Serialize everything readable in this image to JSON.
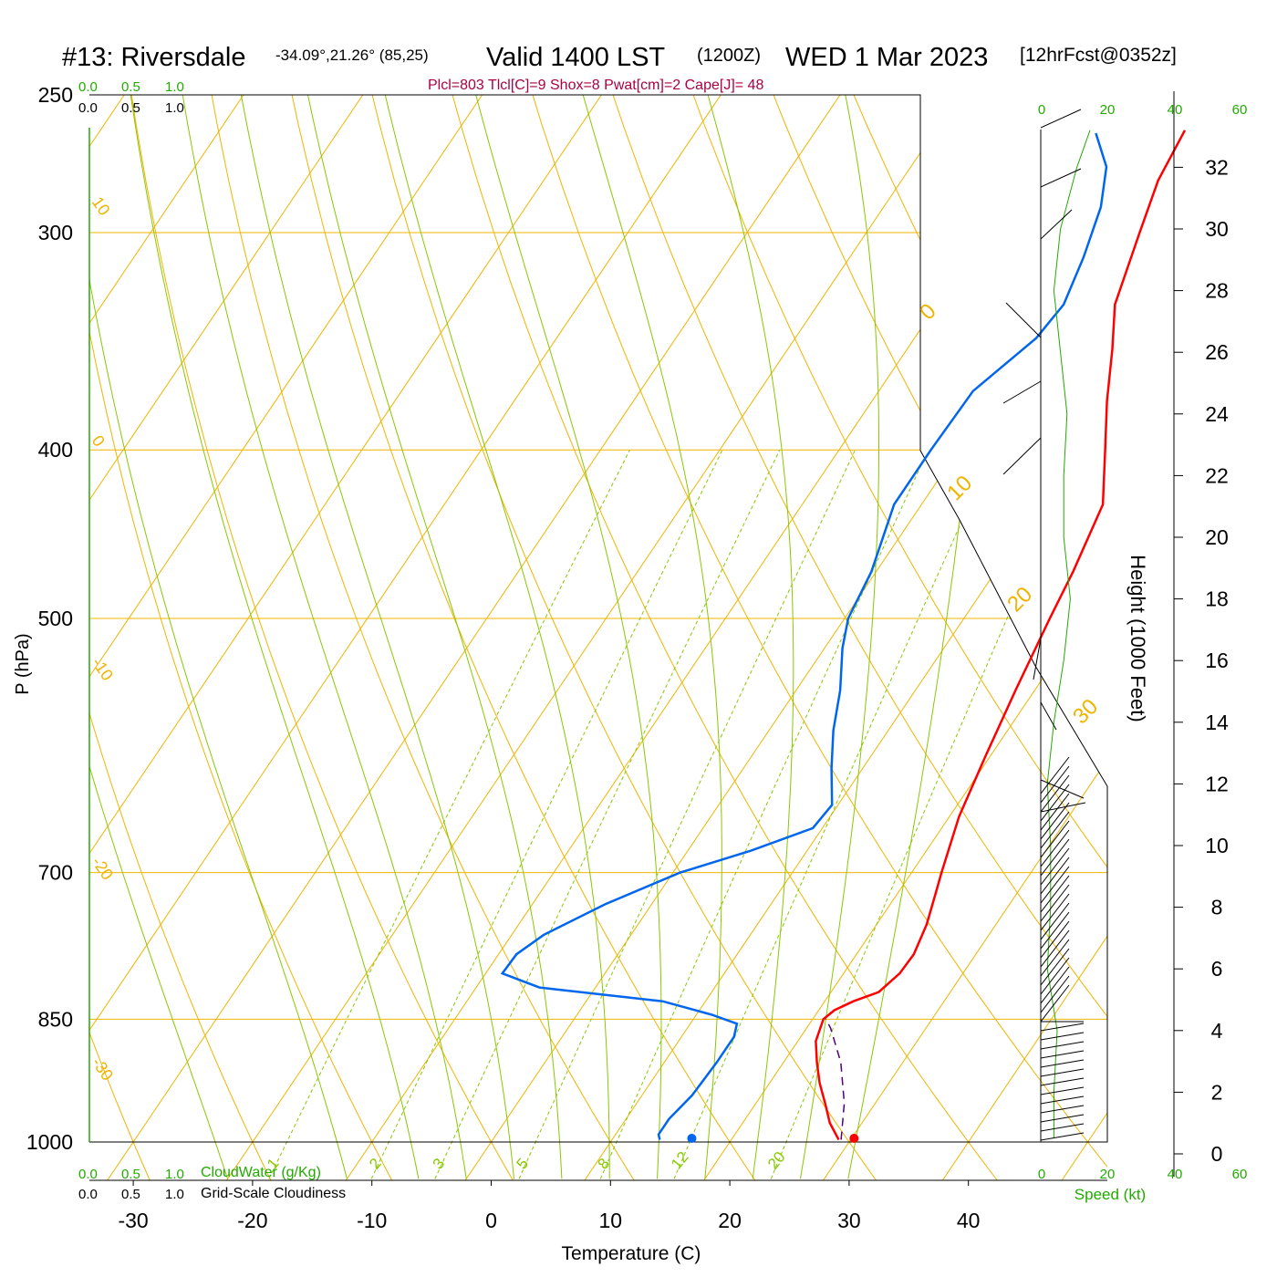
{
  "header": {
    "station": "#13: Riversdale",
    "coords": "-34.09°,21.26° (85,25)",
    "valid": "Valid 1400 LST",
    "zulu": "(1200Z)",
    "date": "WED 1 Mar 2023",
    "forecast": "[12hrFcst@0352z]",
    "indices": "Plcl=803 Tlcl[C]=9 Shox=8 Pwat[cm]=2 Cape[J]= 48"
  },
  "left_scales": {
    "top_green": [
      "0.0",
      "0.5",
      "1.0"
    ],
    "top_black": [
      "0.0",
      "0.5",
      "1.0"
    ],
    "bottom_green": [
      "0.0",
      "0.5",
      "1.0"
    ],
    "bottom_green_label": "CloudWater (g/Kg)",
    "bottom_black": [
      "0.0",
      "0.5",
      "1.0"
    ],
    "bottom_black_label": "Grid-Scale Cloudiness"
  },
  "wind_panel": {
    "top_ticks": [
      "0",
      "20",
      "40",
      "60"
    ],
    "bottom_ticks": [
      "0",
      "20",
      "40",
      "60"
    ],
    "label": "Speed (kt)"
  },
  "height_axis": {
    "label": "Height (1000 Feet)",
    "ticks": [
      "0",
      "2",
      "4",
      "6",
      "8",
      "10",
      "12",
      "14",
      "16",
      "18",
      "20",
      "22",
      "24",
      "26",
      "28",
      "30",
      "32"
    ]
  },
  "colors": {
    "temperature": "#ff0000",
    "dewpoint": "#0066ee",
    "isobar": "#f0b400",
    "dry_adiabat": "#f0b400",
    "moist_adiabat": "#88c800",
    "mixing_ratio": "#88c800",
    "label_green": "#22aa00",
    "indices": "#aa0044"
  },
  "chart_data": {
    "type": "skew-t",
    "xlabel": "Temperature (C)",
    "ylabel": "P (hPa)",
    "x_ticks": [
      -30,
      -20,
      -10,
      0,
      10,
      20,
      30,
      40
    ],
    "pressure_ticks": [
      250,
      300,
      400,
      500,
      700,
      850,
      1000
    ],
    "isotherm_labels": [
      {
        "p": 288,
        "value": "10"
      },
      {
        "p": 395,
        "value": "0"
      },
      {
        "p": 530,
        "value": "-10"
      },
      {
        "p": 690,
        "value": "-20"
      },
      {
        "p": 900,
        "value": "-30"
      },
      {
        "p": 330,
        "value": "0"
      },
      {
        "p": 410,
        "value": "10"
      },
      {
        "p": 480,
        "value": "20"
      },
      {
        "p": 560,
        "value": "30"
      }
    ],
    "mixing_ratio_labels": [
      "1",
      "2",
      "3",
      "5",
      "8",
      "12",
      "20"
    ],
    "temperature_profile": [
      {
        "p": 997,
        "t": 29.0
      },
      {
        "p": 975,
        "t": 27.3
      },
      {
        "p": 950,
        "t": 25.8
      },
      {
        "p": 925,
        "t": 24.2
      },
      {
        "p": 900,
        "t": 22.8
      },
      {
        "p": 875,
        "t": 21.5
      },
      {
        "p": 850,
        "t": 20.9
      },
      {
        "p": 840,
        "t": 21.3
      },
      {
        "p": 830,
        "t": 22.4
      },
      {
        "p": 820,
        "t": 24.0
      },
      {
        "p": 800,
        "t": 24.7
      },
      {
        "p": 780,
        "t": 24.8
      },
      {
        "p": 750,
        "t": 24.2
      },
      {
        "p": 720,
        "t": 23.2
      },
      {
        "p": 700,
        "t": 22.5
      },
      {
        "p": 650,
        "t": 20.8
      },
      {
        "p": 600,
        "t": 19.6
      },
      {
        "p": 550,
        "t": 18.4
      },
      {
        "p": 500,
        "t": 17.2
      },
      {
        "p": 470,
        "t": 16.5
      },
      {
        "p": 430,
        "t": 15.2
      },
      {
        "p": 400,
        "t": 12.3
      },
      {
        "p": 375,
        "t": 9.7
      },
      {
        "p": 350,
        "t": 7.2
      },
      {
        "p": 330,
        "t": 4.9
      },
      {
        "p": 300,
        "t": 2.9
      },
      {
        "p": 280,
        "t": 1.5
      },
      {
        "p": 262,
        "t": 0.9
      }
    ],
    "dewpoint_profile": [
      {
        "p": 997,
        "t": 14.0
      },
      {
        "p": 990,
        "t": 13.6
      },
      {
        "p": 970,
        "t": 13.6
      },
      {
        "p": 940,
        "t": 14.2
      },
      {
        "p": 900,
        "t": 14.4
      },
      {
        "p": 870,
        "t": 14.4
      },
      {
        "p": 855,
        "t": 13.9
      },
      {
        "p": 845,
        "t": 11.3
      },
      {
        "p": 830,
        "t": 6.4
      },
      {
        "p": 815,
        "t": -4.7
      },
      {
        "p": 800,
        "t": -8.6
      },
      {
        "p": 780,
        "t": -8.5
      },
      {
        "p": 760,
        "t": -7.3
      },
      {
        "p": 730,
        "t": -3.9
      },
      {
        "p": 700,
        "t": 0.6
      },
      {
        "p": 680,
        "t": 5.3
      },
      {
        "p": 660,
        "t": 9.2
      },
      {
        "p": 640,
        "t": 9.5
      },
      {
        "p": 610,
        "t": 7.4
      },
      {
        "p": 580,
        "t": 5.4
      },
      {
        "p": 550,
        "t": 3.7
      },
      {
        "p": 520,
        "t": 1.5
      },
      {
        "p": 500,
        "t": 0.3
      },
      {
        "p": 470,
        "t": -0.4
      },
      {
        "p": 430,
        "t": -2.3
      },
      {
        "p": 400,
        "t": -2.3
      },
      {
        "p": 370,
        "t": -2.1
      },
      {
        "p": 345,
        "t": 0.2
      },
      {
        "p": 330,
        "t": 0.6
      },
      {
        "p": 310,
        "t": -0.4
      },
      {
        "p": 290,
        "t": -1.8
      },
      {
        "p": 275,
        "t": -3.6
      },
      {
        "p": 263,
        "t": -6.4
      }
    ],
    "parcel_path": [
      {
        "p": 997,
        "t": 29.2
      },
      {
        "p": 950,
        "t": 27.4
      },
      {
        "p": 900,
        "t": 24.8
      },
      {
        "p": 860,
        "t": 22.0
      },
      {
        "p": 850,
        "t": 21.1
      }
    ],
    "surface_temperature": 30.2,
    "surface_dewpoint": 16.6,
    "wind_speed_profile": [
      {
        "height": 0.5,
        "speed": 4
      },
      {
        "height": 2,
        "speed": 4
      },
      {
        "height": 4,
        "speed": 5
      },
      {
        "height": 6,
        "speed": 2
      },
      {
        "height": 8,
        "speed": 3
      },
      {
        "height": 10,
        "speed": 3
      },
      {
        "height": 12,
        "speed": 2
      },
      {
        "height": 14,
        "speed": 4
      },
      {
        "height": 16,
        "speed": 7
      },
      {
        "height": 18,
        "speed": 9
      },
      {
        "height": 20,
        "speed": 7
      },
      {
        "height": 22,
        "speed": 7
      },
      {
        "height": 24,
        "speed": 8
      },
      {
        "height": 26,
        "speed": 6
      },
      {
        "height": 28,
        "speed": 4
      },
      {
        "height": 30,
        "speed": 6
      },
      {
        "height": 32,
        "speed": 11
      },
      {
        "height": 33.2,
        "speed": 15
      }
    ]
  }
}
